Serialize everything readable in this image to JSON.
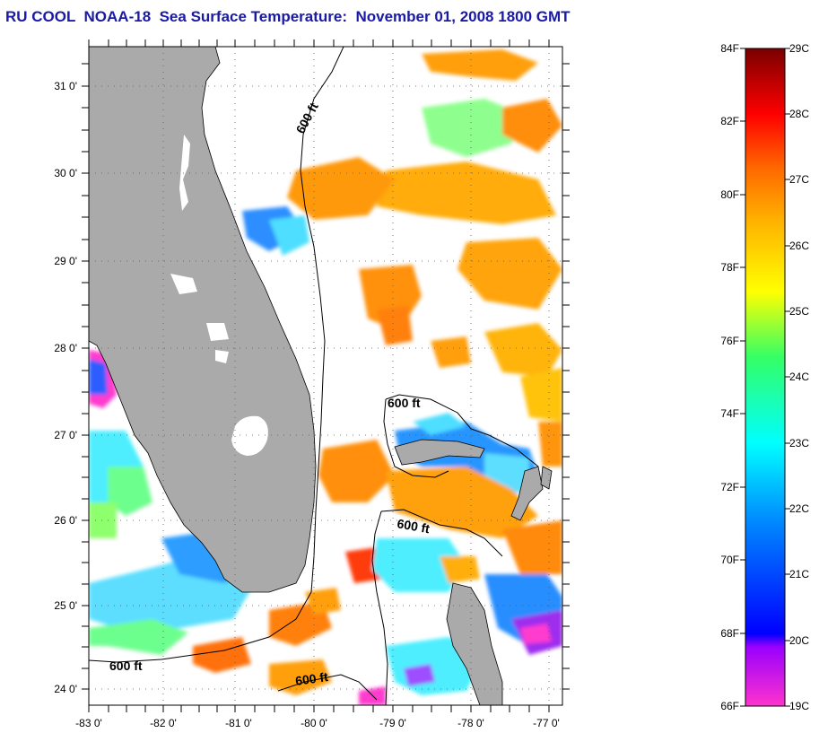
{
  "title": "RU COOL  NOAA-18  Sea Surface Temperature:  November 01, 2008 1800 GMT",
  "map": {
    "lat_labels": [
      "31 0'",
      "30 0'",
      "29 0'",
      "28 0'",
      "27 0'",
      "26 0'",
      "25 0'",
      "24 0'"
    ],
    "lon_labels": [
      "-83 0'",
      "-82 0'",
      "-81 0'",
      "-80 0'",
      "-79 0'",
      "-78 0'",
      "-77 0'"
    ],
    "contour_labels": [
      "600 ft",
      "600 ft",
      "600 ft",
      "600 ft",
      "600 ft"
    ],
    "colors": {
      "land": "#aaaaaa",
      "background": "#ffffff"
    }
  },
  "colorbar": {
    "fahrenheit_labels": [
      "84F",
      "82F",
      "80F",
      "78F",
      "76F",
      "74F",
      "72F",
      "70F",
      "68F",
      "66F"
    ],
    "celsius_labels": [
      "29C",
      "28C",
      "27C",
      "26C",
      "25C",
      "24C",
      "23C",
      "22C",
      "21C",
      "20C",
      "19C"
    ]
  }
}
